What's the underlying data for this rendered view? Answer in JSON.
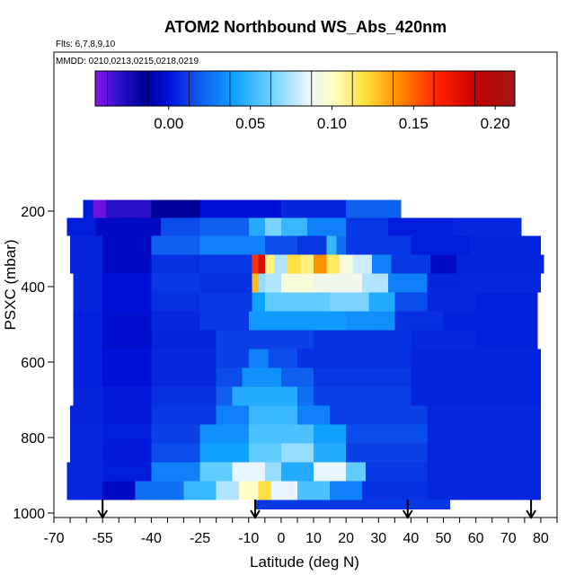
{
  "chart_data": {
    "type": "heatmap",
    "title": "ATOM2 Northbound WS_Abs_420nm",
    "flights_note": "Flts: 6,7,8,9,10",
    "dates_note": "MMDD: 0210,0213,0215,0218,0219",
    "xlabel": "Latitude (deg N)",
    "ylabel": "PSXC (mbar)",
    "xlim": [
      -70,
      85
    ],
    "ylim": [
      1000,
      50
    ],
    "x_ticks": [
      -70,
      -55,
      -40,
      -25,
      -10,
      0,
      10,
      20,
      30,
      40,
      50,
      60,
      70,
      80
    ],
    "x_ticks_labels": [
      "-70",
      "-55",
      "-40",
      "-25",
      "-10",
      "0",
      "10",
      "20",
      "30",
      "40",
      "50",
      "60",
      "70",
      "80"
    ],
    "x_minor_step": 5,
    "y_ticks": [
      200,
      400,
      600,
      800,
      1000
    ],
    "y_ticks_labels": [
      "200",
      "400",
      "600",
      "800",
      "1000"
    ],
    "colorbar": {
      "min": -0.045,
      "max": 0.212,
      "ticks": [
        0.0,
        0.05,
        0.1,
        0.15,
        0.2
      ],
      "tick_labels": [
        "0.00",
        "0.05",
        "0.10",
        "0.15",
        "0.20"
      ],
      "palette_stops": [
        [
          -0.045,
          "#8a14e8"
        ],
        [
          -0.03,
          "#2a10c8"
        ],
        [
          -0.015,
          "#00009a"
        ],
        [
          0.0,
          "#0010d8"
        ],
        [
          0.02,
          "#1060f0"
        ],
        [
          0.04,
          "#10a0ff"
        ],
        [
          0.06,
          "#60ccff"
        ],
        [
          0.085,
          "#e8f4ff"
        ],
        [
          0.1,
          "#ffffc8"
        ],
        [
          0.12,
          "#ffe040"
        ],
        [
          0.14,
          "#ff9000"
        ],
        [
          0.165,
          "#ff2000"
        ],
        [
          0.19,
          "#c00000"
        ],
        [
          0.212,
          "#a01818"
        ]
      ]
    },
    "flight_latitude_markers": [
      -55,
      -8,
      39,
      77
    ],
    "layers": [
      {
        "p_top": 170,
        "p_bot": 218,
        "segments": [
          [
            -61,
            -58,
            0.003
          ],
          [
            -58,
            -54,
            -0.04
          ],
          [
            -54,
            -40,
            -0.03
          ],
          [
            -40,
            -25,
            -0.015
          ],
          [
            -25,
            0,
            0.0
          ],
          [
            0,
            20,
            0.005
          ],
          [
            20,
            37,
            0.02
          ]
        ]
      },
      {
        "p_top": 218,
        "p_bot": 265,
        "segments": [
          [
            -66,
            -57,
            0.003
          ],
          [
            -57,
            -37,
            -0.005
          ],
          [
            -37,
            -25,
            0.015
          ],
          [
            -25,
            -10,
            0.02
          ],
          [
            -10,
            -5,
            0.045
          ],
          [
            -5,
            0,
            0.065
          ],
          [
            0,
            8,
            0.05
          ],
          [
            8,
            20,
            0.03
          ],
          [
            20,
            33,
            0.01
          ],
          [
            33,
            53,
            0.003
          ],
          [
            53,
            74,
            0.006
          ]
        ]
      },
      {
        "p_top": 265,
        "p_bot": 315,
        "segments": [
          [
            -65,
            -55,
            0.005
          ],
          [
            -55,
            -40,
            -0.005
          ],
          [
            -40,
            -25,
            0.02
          ],
          [
            -25,
            -5,
            0.03
          ],
          [
            -5,
            5,
            0.015
          ],
          [
            5,
            14,
            0.01
          ],
          [
            14,
            17,
            0.05
          ],
          [
            17,
            20,
            0.025
          ],
          [
            20,
            40,
            0.01
          ],
          [
            40,
            58,
            0.003
          ],
          [
            58,
            80,
            0.005
          ]
        ]
      },
      {
        "p_top": 315,
        "p_bot": 365,
        "segments": [
          [
            -65,
            -55,
            0.005
          ],
          [
            -55,
            -40,
            -0.005
          ],
          [
            -40,
            -25,
            0.008
          ],
          [
            -25,
            -9,
            0.01
          ],
          [
            -9,
            -7,
            0.16
          ],
          [
            -7,
            -5,
            0.18
          ],
          [
            -5,
            -2,
            0.11
          ],
          [
            -2,
            2,
            0.075
          ],
          [
            2,
            6,
            0.12
          ],
          [
            6,
            10,
            0.11
          ],
          [
            10,
            14,
            0.14
          ],
          [
            14,
            18,
            0.115
          ],
          [
            18,
            22,
            0.095
          ],
          [
            22,
            28,
            0.08
          ],
          [
            28,
            34,
            0.03
          ],
          [
            34,
            46,
            0.01
          ],
          [
            46,
            54,
            -0.005
          ],
          [
            54,
            81,
            0.005
          ]
        ]
      },
      {
        "p_top": 365,
        "p_bot": 415,
        "segments": [
          [
            -64,
            -55,
            0.005
          ],
          [
            -55,
            -40,
            0.0
          ],
          [
            -40,
            -25,
            0.01
          ],
          [
            -25,
            -9,
            0.008
          ],
          [
            -9,
            -7,
            0.13
          ],
          [
            -7,
            -5,
            0.07
          ],
          [
            -5,
            0,
            0.075
          ],
          [
            0,
            10,
            0.095
          ],
          [
            10,
            25,
            0.09
          ],
          [
            25,
            33,
            0.075
          ],
          [
            33,
            45,
            0.03
          ],
          [
            45,
            55,
            0.005
          ],
          [
            55,
            80,
            0.006
          ]
        ]
      },
      {
        "p_top": 415,
        "p_bot": 465,
        "segments": [
          [
            -64,
            -55,
            0.005
          ],
          [
            -55,
            -40,
            0.0
          ],
          [
            -40,
            -25,
            0.008
          ],
          [
            -25,
            -9,
            0.01
          ],
          [
            -9,
            -5,
            0.04
          ],
          [
            -5,
            15,
            0.06
          ],
          [
            15,
            27,
            0.065
          ],
          [
            27,
            35,
            0.045
          ],
          [
            35,
            45,
            0.015
          ],
          [
            45,
            60,
            0.006
          ],
          [
            60,
            79,
            0.004
          ]
        ]
      },
      {
        "p_top": 465,
        "p_bot": 515,
        "segments": [
          [
            -64,
            -55,
            0.004
          ],
          [
            -55,
            -40,
            -0.002
          ],
          [
            -40,
            -25,
            0.006
          ],
          [
            -25,
            -10,
            0.01
          ],
          [
            -10,
            20,
            0.038
          ],
          [
            20,
            35,
            0.035
          ],
          [
            35,
            50,
            0.008
          ],
          [
            50,
            79,
            0.004
          ]
        ]
      },
      {
        "p_top": 515,
        "p_bot": 565,
        "segments": [
          [
            -64,
            -55,
            0.004
          ],
          [
            -55,
            -40,
            -0.002
          ],
          [
            -40,
            -20,
            0.005
          ],
          [
            -20,
            10,
            0.012
          ],
          [
            10,
            40,
            0.008
          ],
          [
            40,
            60,
            0.006
          ],
          [
            60,
            79,
            0.004
          ]
        ]
      },
      {
        "p_top": 565,
        "p_bot": 615,
        "segments": [
          [
            -64,
            -55,
            0.004
          ],
          [
            -55,
            -40,
            0.0
          ],
          [
            -40,
            -20,
            0.006
          ],
          [
            -20,
            -10,
            0.012
          ],
          [
            -10,
            -4,
            0.03
          ],
          [
            -4,
            5,
            0.015
          ],
          [
            5,
            40,
            0.008
          ],
          [
            40,
            80,
            0.005
          ]
        ]
      },
      {
        "p_top": 615,
        "p_bot": 665,
        "segments": [
          [
            -64,
            -55,
            0.004
          ],
          [
            -55,
            -40,
            0.0
          ],
          [
            -40,
            -20,
            0.006
          ],
          [
            -20,
            -12,
            0.015
          ],
          [
            -12,
            0,
            0.035
          ],
          [
            0,
            10,
            0.02
          ],
          [
            10,
            40,
            0.01
          ],
          [
            40,
            80,
            0.005
          ]
        ]
      },
      {
        "p_top": 665,
        "p_bot": 715,
        "segments": [
          [
            -64,
            -55,
            0.005
          ],
          [
            -55,
            -40,
            0.002
          ],
          [
            -40,
            -20,
            0.008
          ],
          [
            -20,
            -15,
            0.02
          ],
          [
            -15,
            5,
            0.045
          ],
          [
            5,
            10,
            0.025
          ],
          [
            10,
            40,
            0.012
          ],
          [
            40,
            80,
            0.005
          ]
        ]
      },
      {
        "p_top": 715,
        "p_bot": 765,
        "segments": [
          [
            -65,
            -55,
            0.005
          ],
          [
            -55,
            -40,
            0.002
          ],
          [
            -40,
            -20,
            0.01
          ],
          [
            -20,
            -10,
            0.03
          ],
          [
            -10,
            5,
            0.05
          ],
          [
            5,
            15,
            0.03
          ],
          [
            15,
            45,
            0.012
          ],
          [
            45,
            80,
            0.006
          ]
        ]
      },
      {
        "p_top": 765,
        "p_bot": 815,
        "segments": [
          [
            -65,
            -55,
            0.006
          ],
          [
            -55,
            -40,
            0.003
          ],
          [
            -40,
            -25,
            0.012
          ],
          [
            -25,
            -10,
            0.035
          ],
          [
            -10,
            10,
            0.055
          ],
          [
            10,
            20,
            0.04
          ],
          [
            20,
            45,
            0.015
          ],
          [
            45,
            80,
            0.006
          ]
        ]
      },
      {
        "p_top": 815,
        "p_bot": 865,
        "segments": [
          [
            -65,
            -55,
            0.006
          ],
          [
            -55,
            -40,
            0.002
          ],
          [
            -40,
            -25,
            0.015
          ],
          [
            -25,
            -10,
            0.04
          ],
          [
            -10,
            0,
            0.06
          ],
          [
            0,
            10,
            0.07
          ],
          [
            10,
            20,
            0.045
          ],
          [
            20,
            45,
            0.012
          ],
          [
            45,
            80,
            0.006
          ]
        ]
      },
      {
        "p_top": 865,
        "p_bot": 915,
        "segments": [
          [
            -66,
            -55,
            0.006
          ],
          [
            -55,
            -40,
            0.003
          ],
          [
            -40,
            -25,
            0.03
          ],
          [
            -25,
            -15,
            0.06
          ],
          [
            -15,
            -5,
            0.085
          ],
          [
            -5,
            0,
            0.07
          ],
          [
            0,
            10,
            0.045
          ],
          [
            10,
            20,
            0.085
          ],
          [
            20,
            26,
            0.06
          ],
          [
            26,
            45,
            0.01
          ],
          [
            45,
            80,
            0.006
          ]
        ]
      },
      {
        "p_top": 915,
        "p_bot": 965,
        "segments": [
          [
            -66,
            -55,
            0.006
          ],
          [
            -55,
            -45,
            -0.005
          ],
          [
            -45,
            -30,
            0.025
          ],
          [
            -30,
            -20,
            0.05
          ],
          [
            -20,
            -13,
            0.075
          ],
          [
            -13,
            -7,
            0.1
          ],
          [
            -7,
            -3,
            0.12
          ],
          [
            -3,
            5,
            0.085
          ],
          [
            5,
            15,
            0.055
          ],
          [
            15,
            25,
            0.03
          ],
          [
            25,
            45,
            0.008
          ],
          [
            45,
            80,
            0.006
          ]
        ]
      },
      {
        "p_top": 965,
        "p_bot": 990,
        "segments": [
          [
            -8,
            52,
            0.01
          ]
        ]
      }
    ]
  }
}
